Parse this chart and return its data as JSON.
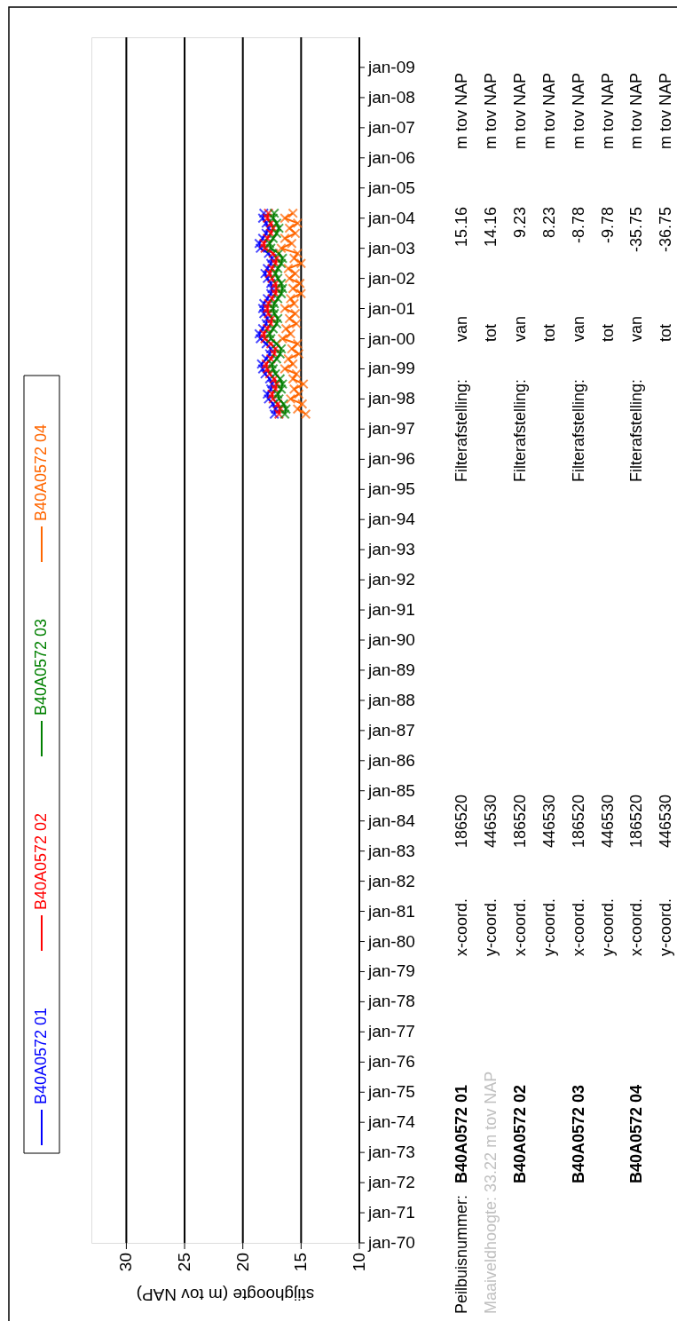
{
  "chart_data": {
    "type": "line",
    "orientation": "horizontal",
    "xlabel": "stijghoogte (m tov NAP)",
    "x": [
      "1997-07",
      "1997-09",
      "1997-11",
      "1998-01",
      "1998-03",
      "1998-05",
      "1998-07",
      "1998-09",
      "1998-11",
      "1999-01",
      "1999-03",
      "1999-05",
      "1999-07",
      "1999-09",
      "1999-11",
      "2000-01",
      "2000-03",
      "2000-05",
      "2000-07",
      "2000-09",
      "2000-11",
      "2001-01",
      "2001-03",
      "2001-05",
      "2001-07",
      "2001-09",
      "2001-11",
      "2002-01",
      "2002-03",
      "2002-05",
      "2002-07",
      "2002-09",
      "2002-11",
      "2003-01",
      "2003-03",
      "2003-05",
      "2003-07",
      "2003-09",
      "2003-11",
      "2004-01",
      "2004-03"
    ],
    "series": [
      {
        "name": "B40A0572 01",
        "color": "#0000ff",
        "values": [
          17.3,
          17.2,
          17.4,
          17.8,
          17.9,
          17.6,
          17.5,
          17.7,
          18.1,
          18.3,
          18.4,
          18.0,
          17.7,
          17.6,
          18.0,
          18.5,
          18.6,
          18.3,
          18.0,
          17.9,
          18.2,
          18.3,
          18.2,
          17.9,
          17.6,
          17.5,
          17.6,
          17.9,
          18.1,
          17.9,
          17.6,
          17.5,
          17.8,
          18.5,
          18.6,
          18.3,
          18.0,
          17.8,
          18.0,
          18.3,
          18.2
        ]
      },
      {
        "name": "B40A0572 02",
        "color": "#ff0000",
        "values": [
          16.9,
          16.8,
          17.0,
          17.4,
          17.5,
          17.2,
          17.1,
          17.3,
          17.7,
          17.9,
          18.0,
          17.6,
          17.3,
          17.2,
          17.6,
          18.1,
          18.2,
          17.9,
          17.6,
          17.5,
          17.8,
          17.9,
          17.8,
          17.5,
          17.2,
          17.1,
          17.2,
          17.5,
          17.7,
          17.5,
          17.2,
          17.1,
          17.4,
          18.1,
          18.2,
          17.9,
          17.6,
          17.4,
          17.6,
          17.9,
          17.8
        ]
      },
      {
        "name": "B40A0572 03",
        "color": "#008000",
        "values": [
          16.4,
          16.3,
          16.5,
          16.9,
          17.0,
          16.7,
          16.6,
          16.8,
          17.2,
          17.4,
          17.5,
          17.1,
          16.8,
          16.7,
          17.1,
          17.6,
          17.7,
          17.4,
          17.1,
          17.0,
          17.3,
          17.4,
          17.3,
          17.0,
          16.7,
          16.6,
          16.7,
          17.0,
          17.2,
          17.0,
          16.7,
          16.6,
          16.9,
          17.6,
          17.7,
          17.4,
          17.1,
          16.9,
          17.1,
          17.4,
          17.3
        ]
      },
      {
        "name": "B40A0572 04",
        "color": "#ff6600",
        "values": [
          14.6,
          15.3,
          14.9,
          15.9,
          15.2,
          15.6,
          14.8,
          15.7,
          15.4,
          16.4,
          15.7,
          16.1,
          15.2,
          15.8,
          15.3,
          16.6,
          15.9,
          16.3,
          15.4,
          16.0,
          15.5,
          16.4,
          15.6,
          15.9,
          15.0,
          15.7,
          15.1,
          16.0,
          15.5,
          16.1,
          15.0,
          15.6,
          15.3,
          16.7,
          15.8,
          16.4,
          15.5,
          16.0,
          15.3,
          16.4,
          15.7
        ]
      }
    ],
    "ylim": [
      "1970-01",
      "2010-01"
    ],
    "yticks": [
      {
        "value": "1970-01",
        "label": "jan-70"
      },
      {
        "value": "1971-01",
        "label": "jan-71"
      },
      {
        "value": "1972-01",
        "label": "jan-72"
      },
      {
        "value": "1973-01",
        "label": "jan-73"
      },
      {
        "value": "1974-01",
        "label": "jan-74"
      },
      {
        "value": "1975-01",
        "label": "jan-75"
      },
      {
        "value": "1976-01",
        "label": "jan-76"
      },
      {
        "value": "1977-01",
        "label": "jan-77"
      },
      {
        "value": "1978-01",
        "label": "jan-78"
      },
      {
        "value": "1979-01",
        "label": "jan-79"
      },
      {
        "value": "1980-01",
        "label": "jan-80"
      },
      {
        "value": "1981-01",
        "label": "jan-81"
      },
      {
        "value": "1982-01",
        "label": "jan-82"
      },
      {
        "value": "1983-01",
        "label": "jan-83"
      },
      {
        "value": "1984-01",
        "label": "jan-84"
      },
      {
        "value": "1985-01",
        "label": "jan-85"
      },
      {
        "value": "1986-01",
        "label": "jan-86"
      },
      {
        "value": "1987-01",
        "label": "jan-87"
      },
      {
        "value": "1988-01",
        "label": "jan-88"
      },
      {
        "value": "1989-01",
        "label": "jan-89"
      },
      {
        "value": "1990-01",
        "label": "jan-90"
      },
      {
        "value": "1991-01",
        "label": "jan-91"
      },
      {
        "value": "1992-01",
        "label": "jan-92"
      },
      {
        "value": "1993-01",
        "label": "jan-93"
      },
      {
        "value": "1994-01",
        "label": "jan-94"
      },
      {
        "value": "1995-01",
        "label": "jan-95"
      },
      {
        "value": "1996-01",
        "label": "jan-96"
      },
      {
        "value": "1997-01",
        "label": "jan-97"
      },
      {
        "value": "1998-01",
        "label": "jan-98"
      },
      {
        "value": "1999-01",
        "label": "jan-99"
      },
      {
        "value": "2000-01",
        "label": "jan-00"
      },
      {
        "value": "2001-01",
        "label": "jan-01"
      },
      {
        "value": "2002-01",
        "label": "jan-02"
      },
      {
        "value": "2003-01",
        "label": "jan-03"
      },
      {
        "value": "2004-01",
        "label": "jan-04"
      },
      {
        "value": "2005-01",
        "label": "jan-05"
      },
      {
        "value": "2006-01",
        "label": "jan-06"
      },
      {
        "value": "2007-01",
        "label": "jan-07"
      },
      {
        "value": "2008-01",
        "label": "jan-08"
      },
      {
        "value": "2009-01",
        "label": "jan-09"
      }
    ],
    "xlim": [
      33,
      10
    ],
    "xticks": [
      30,
      25,
      20,
      15,
      10
    ],
    "grid": "x",
    "legend": "left",
    "marker": "cross",
    "line_style": "solid",
    "annotations": [
      "Peilbuisnummer:",
      "B40A0572 01",
      "x-coord.",
      "186520",
      "Filterafstelling:",
      "van",
      "15.16",
      "m tov NAP",
      "Maaiveldhoogte: 33.22 m tov NAP",
      "y-coord.",
      "446530",
      "tot",
      "14.16",
      "m tov NAP",
      "B40A0572 02",
      "x-coord.",
      "186520",
      "Filterafstelling:",
      "van",
      "9.23",
      "m tov NAP",
      "y-coord.",
      "446530",
      "tot",
      "8.23",
      "m tov NAP",
      "B40A0572 03",
      "x-coord.",
      "186520",
      "Filterafstelling:",
      "van",
      "-8.78",
      "m tov NAP",
      "y-coord.",
      "446530",
      "tot",
      "-9.78",
      "m tov NAP",
      "B40A0572 04",
      "x-coord.",
      "186520",
      "Filterafstelling:",
      "van",
      "-35.75",
      "m tov NAP",
      "y-coord.",
      "446530",
      "tot",
      "-36.75",
      "m tov NAP"
    ]
  }
}
